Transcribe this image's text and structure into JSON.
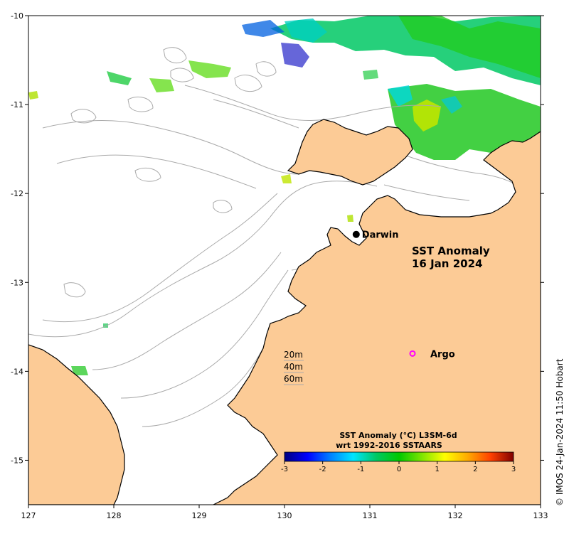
{
  "map": {
    "title_line1": "SST Anomaly",
    "title_line2": "16 Jan 2024",
    "credit": "© IMOS 24-Jan-2024 11:50 Hobart",
    "colors": {
      "land": "#fccb96",
      "ocean": "#ffffff",
      "coast": "#000000",
      "bathymetry": "#aaaaaa",
      "darwin_marker": "#000000",
      "argo_marker": "#ff00ff"
    },
    "x_axis": {
      "ticks": [
        "127",
        "128",
        "129",
        "130",
        "131",
        "132",
        "133"
      ]
    },
    "y_axis": {
      "ticks": [
        "-10",
        "-11",
        "-12",
        "-13",
        "-14",
        "-15"
      ]
    },
    "places": {
      "darwin": {
        "label": "Darwin",
        "lon": 130.84,
        "lat": -12.46
      },
      "argo": {
        "label": "Argo",
        "lon": 131.5,
        "lat": -13.8
      }
    },
    "depth_legend": {
      "d20": "20m",
      "d40": "40m",
      "d60": "60m"
    },
    "colorbar": {
      "title_line1": "SST Anomaly (°C) L3SM-6d",
      "title_line2": "wrt 1992-2016 SSTAARS",
      "ticks": [
        "-3",
        "-2",
        "-1",
        "0",
        "1",
        "2",
        "3"
      ],
      "stops": [
        "#00007f",
        "#0000ff",
        "#0080ff",
        "#00e5ff",
        "#00c864",
        "#00c800",
        "#7fe500",
        "#ffff00",
        "#ffaa00",
        "#ff4000",
        "#7f0000"
      ]
    }
  }
}
